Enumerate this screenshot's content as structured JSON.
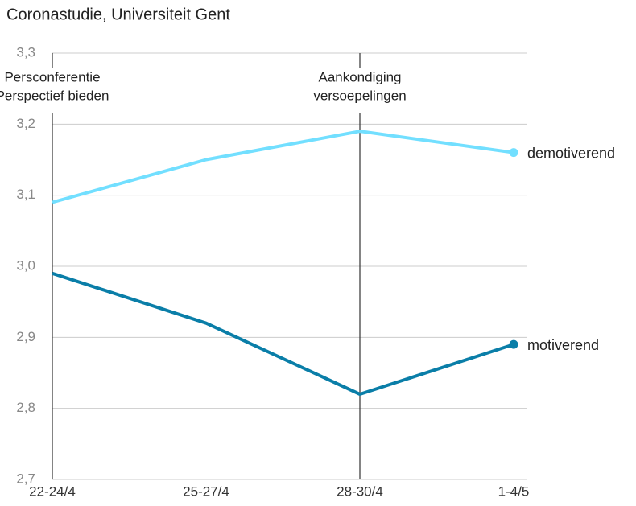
{
  "chart_data": {
    "type": "line",
    "title": "Coronastudie, Universiteit Gent",
    "categories": [
      "22-24/4",
      "25-27/4",
      "28-30/4",
      "1-4/5"
    ],
    "series": [
      {
        "name": "demotiverend",
        "color": "#72dfff",
        "values": [
          3.09,
          3.15,
          3.19,
          3.16
        ]
      },
      {
        "name": "motiverend",
        "color": "#0a7ea8",
        "values": [
          2.99,
          2.92,
          2.82,
          2.89
        ]
      }
    ],
    "ylim": [
      2.7,
      3.3
    ],
    "yticks": [
      {
        "value": 2.7,
        "label": "2,7"
      },
      {
        "value": 2.8,
        "label": "2,8"
      },
      {
        "value": 2.9,
        "label": "2,9"
      },
      {
        "value": 3.0,
        "label": "3,0"
      },
      {
        "value": 3.1,
        "label": "3,1"
      },
      {
        "value": 3.2,
        "label": "3,2"
      },
      {
        "value": 3.3,
        "label": "3,3"
      }
    ],
    "grid": true,
    "annotations": [
      {
        "x": "22-24/4",
        "lines": [
          "Persconferentie",
          "Perspectief bieden"
        ]
      },
      {
        "x": "28-30/4",
        "lines": [
          "Aankondiging",
          "versoepelingen"
        ]
      }
    ]
  }
}
